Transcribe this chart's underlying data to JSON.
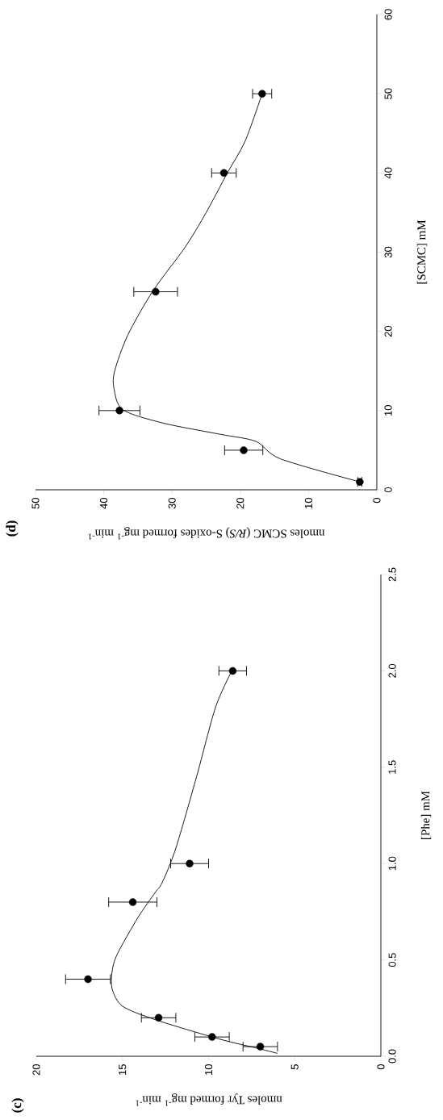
{
  "chart_data": [
    {
      "type": "scatter",
      "title": "(c)",
      "xlabel": "nmoles Tyr formed mg$^{-1}$ min$^{-1}$",
      "ylabel": "[Phe] mM",
      "xlim": [
        20,
        0
      ],
      "ylim": [
        0,
        2.5
      ],
      "xticks": [
        20,
        15,
        10,
        5,
        0
      ],
      "yticks": [
        {
          "value": 0,
          "label": "0.0"
        },
        {
          "value": 0.5,
          "label": "0.5"
        },
        {
          "value": 1,
          "label": "1.0"
        },
        {
          "value": 1.5,
          "label": "1.5"
        },
        {
          "value": 2,
          "label": "2.0"
        },
        {
          "value": 2.5,
          "label": "2.5"
        }
      ],
      "marker": "circle",
      "series": [
        {
          "color": "#000000",
          "x": [
            7.0,
            9.8,
            12.9,
            17.0,
            14.4,
            11.1,
            8.6
          ],
          "values": [
            0.05,
            0.1,
            0.2,
            0.4,
            0.8,
            1.0,
            2.0
          ],
          "xerrors": [
            1.0,
            1.0,
            1.0,
            1.3,
            1.4,
            1.1,
            0.8
          ]
        },
        {
          "type": "line",
          "marker": "none",
          "color": "#000000",
          "x": [
            6.0,
            7.1,
            9.4,
            13.1,
            15.0,
            15.6,
            15.6,
            15.3,
            14.1,
            13.1,
            12.7,
            11.9,
            10.7,
            9.6,
            8.65
          ],
          "values": [
            0.015,
            0.04,
            0.09,
            0.19,
            0.26,
            0.35,
            0.44,
            0.53,
            0.72,
            0.85,
            0.9,
            1.08,
            1.45,
            1.81,
            2.0
          ]
        }
      ]
    },
    {
      "type": "scatter",
      "title": "(d)",
      "xlabel": "nmoles SCMC (*R/S*) S-oxides formed mg$^{-1}$ min$^{-1}$",
      "ylabel": "[SCMC] mM",
      "xlim": [
        50,
        0
      ],
      "ylim": [
        0,
        60
      ],
      "xticks": [
        50,
        40,
        30,
        20,
        10,
        0
      ],
      "yticks": [
        0,
        10,
        20,
        30,
        40,
        50,
        60
      ],
      "marker": "circle",
      "series": [
        {
          "color": "#000000",
          "x": [
            2.5,
            19.5,
            37.7,
            32.4,
            22.4,
            16.8
          ],
          "values": [
            1,
            5,
            10,
            25,
            40,
            50
          ],
          "xerrors": [
            0.3,
            2.8,
            3.0,
            3.2,
            1.8,
            1.4
          ]
        },
        {
          "type": "line",
          "marker": "none",
          "color": "#000000",
          "x": [
            2.5,
            14.1,
            17.7,
            22.9,
            31.2,
            37.2,
            38.5,
            38.4,
            36.5,
            32.8,
            28.1,
            25.0,
            21.9,
            19.3,
            16.8
          ],
          "values": [
            1,
            3.9,
            6.1,
            7.0,
            8.4,
            10.1,
            12.8,
            15.0,
            19.5,
            25.1,
            30.6,
            35.0,
            40.0,
            44.0,
            50.0
          ]
        }
      ]
    }
  ]
}
